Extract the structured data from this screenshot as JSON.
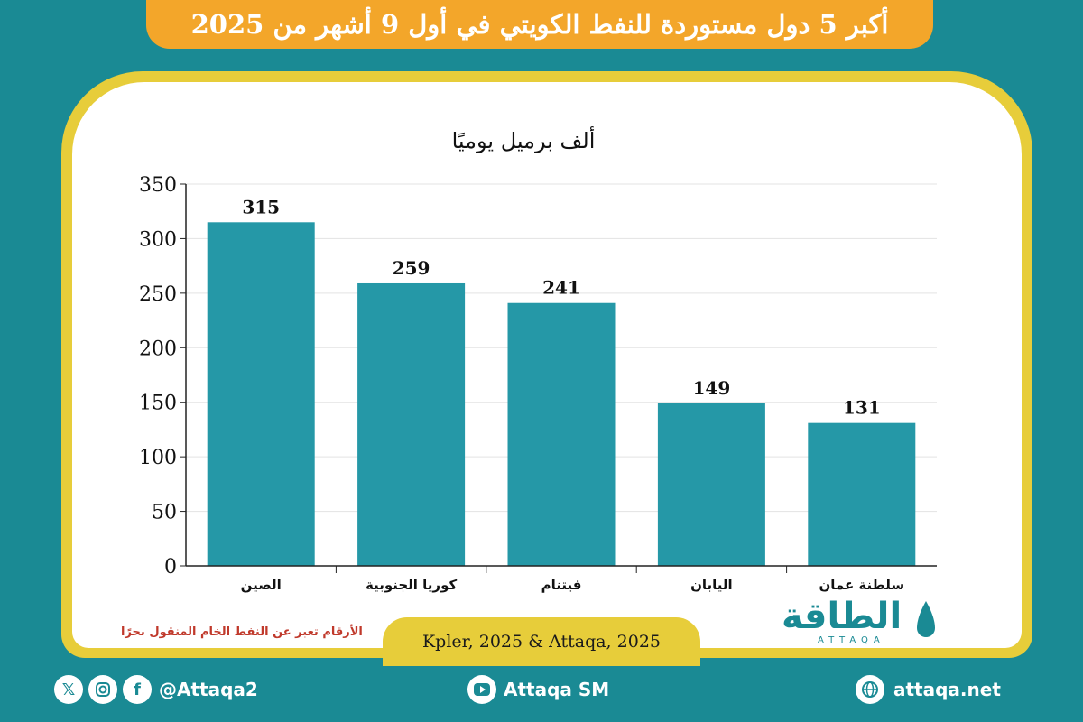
{
  "header": {
    "title": "أكبر 5 دول مستوردة للنفط الكويتي في أول 9 أشهر من 2025"
  },
  "chart_data": {
    "type": "bar",
    "subtitle": "ألف برميل يوميًا",
    "categories": [
      "الصين",
      "كوريا الجنوبية",
      "فيتنام",
      "اليابان",
      "سلطنة عمان"
    ],
    "values": [
      315,
      259,
      241,
      149,
      131
    ],
    "ylim": [
      0,
      350
    ],
    "yticks": [
      0,
      50,
      100,
      150,
      200,
      250,
      300,
      350
    ],
    "grid": true,
    "bar_color": "#2598a7"
  },
  "note": "الأرقام تعبر عن النفط الخام المنقول بحرًا",
  "source": "Kpler, 2025 & Attaqa, 2025",
  "logo": {
    "word": "الطاقة",
    "sub": "ATTAQA"
  },
  "footer": {
    "social_handle": "@Attaqa2",
    "youtube": "Attaqa SM",
    "website": "attaqa.net",
    "icons": [
      "x-icon",
      "instagram-icon",
      "facebook-icon",
      "youtube-icon",
      "globe-icon"
    ]
  }
}
